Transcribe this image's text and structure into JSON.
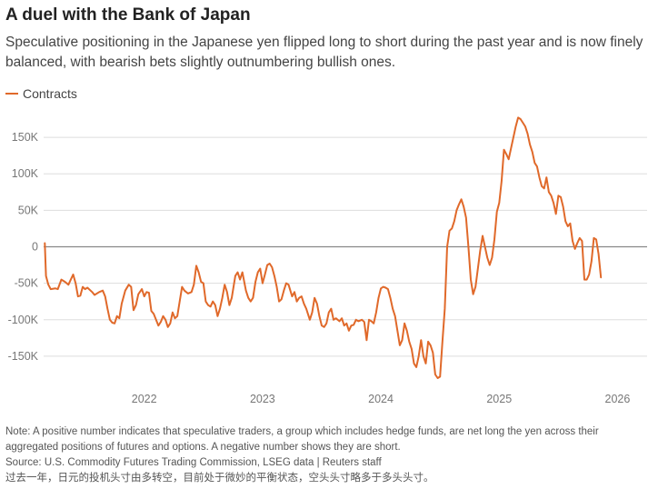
{
  "header": {
    "title": "A duel with the Bank of Japan",
    "subtitle": "Speculative positioning in the Japanese yen flipped long to short during the past year and is now finely balanced, with bearish bets slightly outnumbering bullish ones."
  },
  "footer": {
    "note": "Note: A positive number indicates that speculative traders, a group which includes hedge funds, are net long the yen across their aggregated positions of futures and options. A negative number shows they are short.",
    "source": "Source: U.S. Commodity Futures Trading Commission, LSEG data | Reuters staff",
    "translation": "过去一年，日元的投机头寸由多转空，目前处于微妙的平衡状态，空头头寸略多于多头头寸。"
  },
  "colors": {
    "series": "#e0692a",
    "grid": "#dddddd",
    "zero": "#888888"
  },
  "chart_data": {
    "type": "line",
    "title": "A duel with the Bank of Japan",
    "xlabel": "",
    "ylabel": "",
    "ylim": [
      -185000,
      185000
    ],
    "xlim": [
      2021.15,
      2026.25
    ],
    "grid": true,
    "legend_position": "top-left",
    "y_ticks": [
      {
        "value": 150000,
        "label": "150K"
      },
      {
        "value": 100000,
        "label": "100K"
      },
      {
        "value": 50000,
        "label": "50K"
      },
      {
        "value": 0,
        "label": "0"
      },
      {
        "value": -50000,
        "label": "-50K"
      },
      {
        "value": -100000,
        "label": "-100K"
      },
      {
        "value": -150000,
        "label": "-150K"
      }
    ],
    "x_ticks": [
      {
        "value": 2022,
        "label": "2022"
      },
      {
        "value": 2023,
        "label": "2023"
      },
      {
        "value": 2024,
        "label": "2024"
      },
      {
        "value": 2025,
        "label": "2025"
      },
      {
        "value": 2026,
        "label": "2026"
      }
    ],
    "series": [
      {
        "name": "Contracts",
        "points": [
          [
            2021.16,
            5000
          ],
          [
            2021.17,
            -40000
          ],
          [
            2021.19,
            -52000
          ],
          [
            2021.21,
            -58000
          ],
          [
            2021.25,
            -57000
          ],
          [
            2021.27,
            -58000
          ],
          [
            2021.3,
            -45000
          ],
          [
            2021.33,
            -48000
          ],
          [
            2021.36,
            -52000
          ],
          [
            2021.38,
            -45000
          ],
          [
            2021.4,
            -38000
          ],
          [
            2021.42,
            -50000
          ],
          [
            2021.44,
            -68000
          ],
          [
            2021.46,
            -67000
          ],
          [
            2021.48,
            -55000
          ],
          [
            2021.5,
            -58000
          ],
          [
            2021.52,
            -56000
          ],
          [
            2021.56,
            -62000
          ],
          [
            2021.58,
            -66000
          ],
          [
            2021.62,
            -62000
          ],
          [
            2021.65,
            -60000
          ],
          [
            2021.67,
            -68000
          ],
          [
            2021.69,
            -85000
          ],
          [
            2021.71,
            -100000
          ],
          [
            2021.73,
            -104000
          ],
          [
            2021.75,
            -105000
          ],
          [
            2021.77,
            -95000
          ],
          [
            2021.79,
            -98000
          ],
          [
            2021.81,
            -78000
          ],
          [
            2021.84,
            -60000
          ],
          [
            2021.87,
            -52000
          ],
          [
            2021.89,
            -55000
          ],
          [
            2021.91,
            -87000
          ],
          [
            2021.93,
            -80000
          ],
          [
            2021.95,
            -65000
          ],
          [
            2021.98,
            -58000
          ],
          [
            2022.0,
            -68000
          ],
          [
            2022.02,
            -62000
          ],
          [
            2022.04,
            -63000
          ],
          [
            2022.06,
            -88000
          ],
          [
            2022.08,
            -92000
          ],
          [
            2022.1,
            -100000
          ],
          [
            2022.12,
            -108000
          ],
          [
            2022.14,
            -103000
          ],
          [
            2022.16,
            -95000
          ],
          [
            2022.18,
            -100000
          ],
          [
            2022.2,
            -110000
          ],
          [
            2022.22,
            -105000
          ],
          [
            2022.24,
            -90000
          ],
          [
            2022.26,
            -98000
          ],
          [
            2022.28,
            -95000
          ],
          [
            2022.3,
            -75000
          ],
          [
            2022.32,
            -55000
          ],
          [
            2022.34,
            -60000
          ],
          [
            2022.37,
            -64000
          ],
          [
            2022.4,
            -62000
          ],
          [
            2022.42,
            -52000
          ],
          [
            2022.44,
            -26000
          ],
          [
            2022.46,
            -35000
          ],
          [
            2022.48,
            -48000
          ],
          [
            2022.5,
            -50000
          ],
          [
            2022.52,
            -75000
          ],
          [
            2022.54,
            -80000
          ],
          [
            2022.56,
            -82000
          ],
          [
            2022.58,
            -75000
          ],
          [
            2022.6,
            -80000
          ],
          [
            2022.62,
            -95000
          ],
          [
            2022.64,
            -85000
          ],
          [
            2022.66,
            -70000
          ],
          [
            2022.68,
            -52000
          ],
          [
            2022.7,
            -62000
          ],
          [
            2022.72,
            -80000
          ],
          [
            2022.74,
            -70000
          ],
          [
            2022.77,
            -40000
          ],
          [
            2022.79,
            -35000
          ],
          [
            2022.81,
            -45000
          ],
          [
            2022.83,
            -35000
          ],
          [
            2022.86,
            -60000
          ],
          [
            2022.88,
            -70000
          ],
          [
            2022.9,
            -75000
          ],
          [
            2022.92,
            -70000
          ],
          [
            2022.94,
            -48000
          ],
          [
            2022.96,
            -35000
          ],
          [
            2022.98,
            -30000
          ],
          [
            2023.0,
            -50000
          ],
          [
            2023.02,
            -38000
          ],
          [
            2023.04,
            -25000
          ],
          [
            2023.06,
            -23000
          ],
          [
            2023.08,
            -28000
          ],
          [
            2023.1,
            -40000
          ],
          [
            2023.12,
            -55000
          ],
          [
            2023.14,
            -75000
          ],
          [
            2023.16,
            -72000
          ],
          [
            2023.18,
            -60000
          ],
          [
            2023.2,
            -50000
          ],
          [
            2023.22,
            -52000
          ],
          [
            2023.25,
            -68000
          ],
          [
            2023.27,
            -62000
          ],
          [
            2023.29,
            -75000
          ],
          [
            2023.31,
            -70000
          ],
          [
            2023.33,
            -68000
          ],
          [
            2023.35,
            -78000
          ],
          [
            2023.37,
            -85000
          ],
          [
            2023.4,
            -100000
          ],
          [
            2023.42,
            -90000
          ],
          [
            2023.44,
            -70000
          ],
          [
            2023.46,
            -78000
          ],
          [
            2023.48,
            -95000
          ],
          [
            2023.5,
            -108000
          ],
          [
            2023.52,
            -110000
          ],
          [
            2023.54,
            -105000
          ],
          [
            2023.56,
            -90000
          ],
          [
            2023.58,
            -85000
          ],
          [
            2023.6,
            -100000
          ],
          [
            2023.62,
            -98000
          ],
          [
            2023.65,
            -102000
          ],
          [
            2023.67,
            -98000
          ],
          [
            2023.69,
            -108000
          ],
          [
            2023.71,
            -105000
          ],
          [
            2023.73,
            -115000
          ],
          [
            2023.75,
            -108000
          ],
          [
            2023.77,
            -107000
          ],
          [
            2023.79,
            -100000
          ],
          [
            2023.81,
            -102000
          ],
          [
            2023.84,
            -100000
          ],
          [
            2023.86,
            -103000
          ],
          [
            2023.88,
            -128000
          ],
          [
            2023.9,
            -100000
          ],
          [
            2023.92,
            -102000
          ],
          [
            2023.94,
            -105000
          ],
          [
            2023.96,
            -90000
          ],
          [
            2023.98,
            -70000
          ],
          [
            2024.0,
            -57000
          ],
          [
            2024.02,
            -55000
          ],
          [
            2024.04,
            -56000
          ],
          [
            2024.06,
            -58000
          ],
          [
            2024.08,
            -70000
          ],
          [
            2024.1,
            -85000
          ],
          [
            2024.12,
            -95000
          ],
          [
            2024.14,
            -115000
          ],
          [
            2024.16,
            -135000
          ],
          [
            2024.18,
            -128000
          ],
          [
            2024.2,
            -105000
          ],
          [
            2024.22,
            -115000
          ],
          [
            2024.24,
            -130000
          ],
          [
            2024.26,
            -140000
          ],
          [
            2024.28,
            -160000
          ],
          [
            2024.3,
            -165000
          ],
          [
            2024.32,
            -150000
          ],
          [
            2024.34,
            -128000
          ],
          [
            2024.36,
            -150000
          ],
          [
            2024.38,
            -160000
          ],
          [
            2024.4,
            -130000
          ],
          [
            2024.42,
            -135000
          ],
          [
            2024.44,
            -145000
          ],
          [
            2024.46,
            -175000
          ],
          [
            2024.48,
            -180000
          ],
          [
            2024.5,
            -178000
          ],
          [
            2024.52,
            -130000
          ],
          [
            2024.54,
            -85000
          ],
          [
            2024.56,
            0
          ],
          [
            2024.58,
            22000
          ],
          [
            2024.6,
            25000
          ],
          [
            2024.62,
            35000
          ],
          [
            2024.64,
            50000
          ],
          [
            2024.66,
            58000
          ],
          [
            2024.68,
            65000
          ],
          [
            2024.7,
            55000
          ],
          [
            2024.72,
            40000
          ],
          [
            2024.74,
            0
          ],
          [
            2024.76,
            -45000
          ],
          [
            2024.78,
            -65000
          ],
          [
            2024.8,
            -55000
          ],
          [
            2024.82,
            -30000
          ],
          [
            2024.84,
            -5000
          ],
          [
            2024.86,
            15000
          ],
          [
            2024.88,
            0
          ],
          [
            2024.9,
            -15000
          ],
          [
            2024.92,
            -25000
          ],
          [
            2024.94,
            -15000
          ],
          [
            2024.96,
            10000
          ],
          [
            2024.98,
            48000
          ],
          [
            2025.0,
            60000
          ],
          [
            2025.02,
            90000
          ],
          [
            2025.04,
            133000
          ],
          [
            2025.06,
            127000
          ],
          [
            2025.08,
            120000
          ],
          [
            2025.1,
            135000
          ],
          [
            2025.12,
            150000
          ],
          [
            2025.14,
            165000
          ],
          [
            2025.16,
            177000
          ],
          [
            2025.18,
            175000
          ],
          [
            2025.2,
            170000
          ],
          [
            2025.22,
            165000
          ],
          [
            2025.24,
            155000
          ],
          [
            2025.26,
            140000
          ],
          [
            2025.28,
            130000
          ],
          [
            2025.3,
            115000
          ],
          [
            2025.32,
            110000
          ],
          [
            2025.34,
            95000
          ],
          [
            2025.36,
            83000
          ],
          [
            2025.38,
            80000
          ],
          [
            2025.4,
            95000
          ],
          [
            2025.42,
            75000
          ],
          [
            2025.44,
            70000
          ],
          [
            2025.46,
            60000
          ],
          [
            2025.48,
            45000
          ],
          [
            2025.5,
            70000
          ],
          [
            2025.52,
            68000
          ],
          [
            2025.54,
            55000
          ],
          [
            2025.56,
            35000
          ],
          [
            2025.58,
            28000
          ],
          [
            2025.6,
            32000
          ],
          [
            2025.62,
            8000
          ],
          [
            2025.64,
            -3000
          ],
          [
            2025.66,
            5000
          ],
          [
            2025.68,
            12000
          ],
          [
            2025.7,
            8000
          ],
          [
            2025.72,
            -45000
          ],
          [
            2025.74,
            -45000
          ],
          [
            2025.76,
            -38000
          ],
          [
            2025.78,
            -20000
          ],
          [
            2025.8,
            12000
          ],
          [
            2025.82,
            10000
          ],
          [
            2025.84,
            -10000
          ],
          [
            2025.86,
            -42000
          ]
        ]
      }
    ]
  }
}
